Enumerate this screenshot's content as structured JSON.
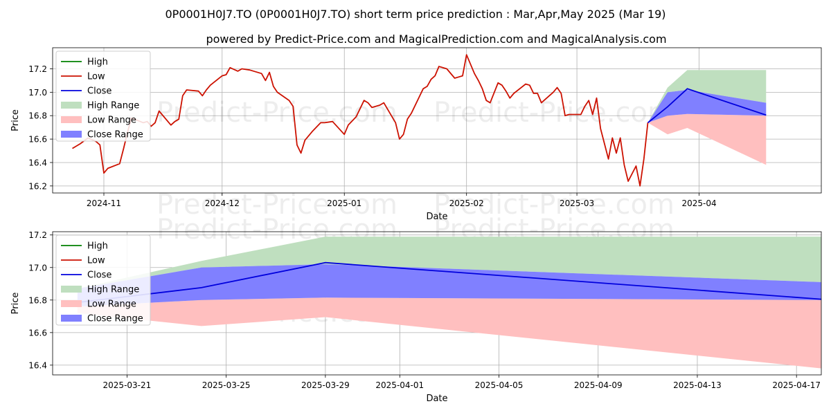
{
  "title": "0P0001H0J7.TO (0P0001H0J7.TO) short term price prediction : Mar,Apr,May 2025 (Mar 19)",
  "subtitle": "powered by Predict-Price.com and MagicalPrediction.com and MagicalAnalysis.com",
  "watermark": "Predict-Price.com",
  "colors": {
    "high": "#008000",
    "low": "#cc1100",
    "close": "#0000dd",
    "high_range": "#bfdfbf",
    "low_range": "#ffbfbf",
    "close_range": "#8080ff"
  },
  "chart_data": [
    {
      "type": "line",
      "xlabel": "Date",
      "ylabel": "Price",
      "ylim": [
        16.14,
        17.38
      ],
      "xlim": [
        "2024-10-19",
        "2025-05-02"
      ],
      "grid": true,
      "legend_position": "top-left",
      "legend": [
        "High",
        "Low",
        "Close",
        "High Range",
        "Low Range",
        "Close Range"
      ],
      "x_ticks": [
        "2024-11",
        "2024-12",
        "2025-01",
        "2025-02",
        "2025-03",
        "2025-04"
      ],
      "y_ticks": [
        "16.2",
        "16.4",
        "16.6",
        "16.8",
        "17.0",
        "17.2"
      ],
      "history": {
        "name": "Low",
        "x": [
          "2024-10-24",
          "2024-10-26",
          "2024-10-28",
          "2024-10-30",
          "2024-10-31",
          "2024-11-01",
          "2024-11-02",
          "2024-11-05",
          "2024-11-06",
          "2024-11-07",
          "2024-11-08",
          "2024-11-11",
          "2024-11-12",
          "2024-11-13",
          "2024-11-14",
          "2024-11-15",
          "2024-11-18",
          "2024-11-19",
          "2024-11-20",
          "2024-11-21",
          "2024-11-22",
          "2024-11-25",
          "2024-11-26",
          "2024-11-27",
          "2024-11-28",
          "2024-12-01",
          "2024-12-02",
          "2024-12-03",
          "2024-12-05",
          "2024-12-06",
          "2024-12-08",
          "2024-12-11",
          "2024-12-12",
          "2024-12-13",
          "2024-12-14",
          "2024-12-15",
          "2024-12-18",
          "2024-12-19",
          "2024-12-20",
          "2024-12-21",
          "2024-12-22",
          "2024-12-24",
          "2024-12-26",
          "2024-12-27",
          "2024-12-29",
          "2025-01-01",
          "2025-01-02",
          "2025-01-04",
          "2025-01-06",
          "2025-01-07",
          "2025-01-08",
          "2025-01-10",
          "2025-01-11",
          "2025-01-14",
          "2025-01-15",
          "2025-01-16",
          "2025-01-17",
          "2025-01-18",
          "2025-01-20",
          "2025-01-21",
          "2025-01-22",
          "2025-01-23",
          "2025-01-24",
          "2025-01-25",
          "2025-01-27",
          "2025-01-29",
          "2025-01-30",
          "2025-01-31",
          "2025-02-01",
          "2025-02-03",
          "2025-02-04",
          "2025-02-05",
          "2025-02-06",
          "2025-02-07",
          "2025-02-09",
          "2025-02-10",
          "2025-02-11",
          "2025-02-12",
          "2025-02-13",
          "2025-02-16",
          "2025-02-17",
          "2025-02-18",
          "2025-02-19",
          "2025-02-20",
          "2025-02-22",
          "2025-02-23",
          "2025-02-24",
          "2025-02-25",
          "2025-02-26",
          "2025-02-27",
          "2025-03-02",
          "2025-03-03",
          "2025-03-04",
          "2025-03-05",
          "2025-03-06",
          "2025-03-07",
          "2025-03-09",
          "2025-03-10",
          "2025-03-11",
          "2025-03-12",
          "2025-03-13",
          "2025-03-14",
          "2025-03-16",
          "2025-03-17",
          "2025-03-18",
          "2025-03-19"
        ],
        "values": [
          16.52,
          16.56,
          16.61,
          16.58,
          16.55,
          16.31,
          16.35,
          16.39,
          16.52,
          16.66,
          16.78,
          16.74,
          16.75,
          16.71,
          16.74,
          16.84,
          16.72,
          16.75,
          16.77,
          16.97,
          17.02,
          17.01,
          16.97,
          17.02,
          17.06,
          17.14,
          17.15,
          17.21,
          17.18,
          17.2,
          17.19,
          17.16,
          17.1,
          17.17,
          17.05,
          17.0,
          16.93,
          16.88,
          16.55,
          16.48,
          16.59,
          16.67,
          16.74,
          16.74,
          16.75,
          16.64,
          16.72,
          16.79,
          16.93,
          16.91,
          16.87,
          16.89,
          16.91,
          16.74,
          16.6,
          16.64,
          16.77,
          16.82,
          16.96,
          17.03,
          17.05,
          17.11,
          17.14,
          17.22,
          17.2,
          17.12,
          17.13,
          17.14,
          17.32,
          17.16,
          17.1,
          17.03,
          16.93,
          16.91,
          17.08,
          17.06,
          17.01,
          16.95,
          16.99,
          17.07,
          17.06,
          16.99,
          16.99,
          16.91,
          16.97,
          17.0,
          17.04,
          16.99,
          16.8,
          16.81,
          16.81,
          16.88,
          16.93,
          16.81,
          16.95,
          16.69,
          16.43,
          16.61,
          16.48,
          16.61,
          16.38,
          16.24,
          16.37,
          16.2,
          16.43,
          16.74
        ]
      },
      "forecast": {
        "x": [
          "2025-03-19",
          "2025-03-24",
          "2025-03-29",
          "2025-04-18"
        ],
        "close": [
          16.74,
          16.876,
          17.03,
          16.805
        ],
        "high_range_upper": [
          16.74,
          17.04,
          17.19,
          17.19
        ],
        "high_range_lower": [
          16.74,
          17.0,
          17.02,
          16.91
        ],
        "close_range_upper": [
          16.74,
          17.0,
          17.02,
          16.91
        ],
        "close_range_lower": [
          16.74,
          16.8,
          16.815,
          16.8
        ],
        "low_range_upper": [
          16.74,
          16.8,
          16.815,
          16.8
        ],
        "low_range_lower": [
          16.74,
          16.64,
          16.695,
          16.38
        ]
      }
    },
    {
      "type": "line",
      "xlabel": "Date",
      "ylabel": "Price",
      "ylim": [
        16.34,
        17.22
      ],
      "xlim": [
        "2025-03-18",
        "2025-04-18"
      ],
      "grid": true,
      "legend_position": "top-left",
      "legend": [
        "High",
        "Low",
        "Close",
        "High Range",
        "Low Range",
        "Close Range"
      ],
      "x_ticks": [
        "2025-03-21",
        "2025-03-25",
        "2025-03-29",
        "2025-04-01",
        "2025-04-05",
        "2025-04-09",
        "2025-04-13",
        "2025-04-17"
      ],
      "y_ticks": [
        "16.4",
        "16.6",
        "16.8",
        "17.0",
        "17.2"
      ],
      "forecast": {
        "x": [
          "2025-03-19",
          "2025-03-24",
          "2025-03-29",
          "2025-04-18"
        ],
        "close": [
          16.785,
          16.876,
          17.03,
          16.805
        ],
        "high_range_upper": [
          16.87,
          17.04,
          17.19,
          17.19
        ],
        "high_range_lower": [
          16.87,
          17.0,
          17.02,
          16.91
        ],
        "close_range_upper": [
          16.87,
          17.0,
          17.02,
          16.91
        ],
        "close_range_lower": [
          16.76,
          16.8,
          16.815,
          16.8
        ],
        "low_range_upper": [
          16.76,
          16.8,
          16.815,
          16.8
        ],
        "low_range_lower": [
          16.72,
          16.64,
          16.695,
          16.38
        ]
      }
    }
  ]
}
